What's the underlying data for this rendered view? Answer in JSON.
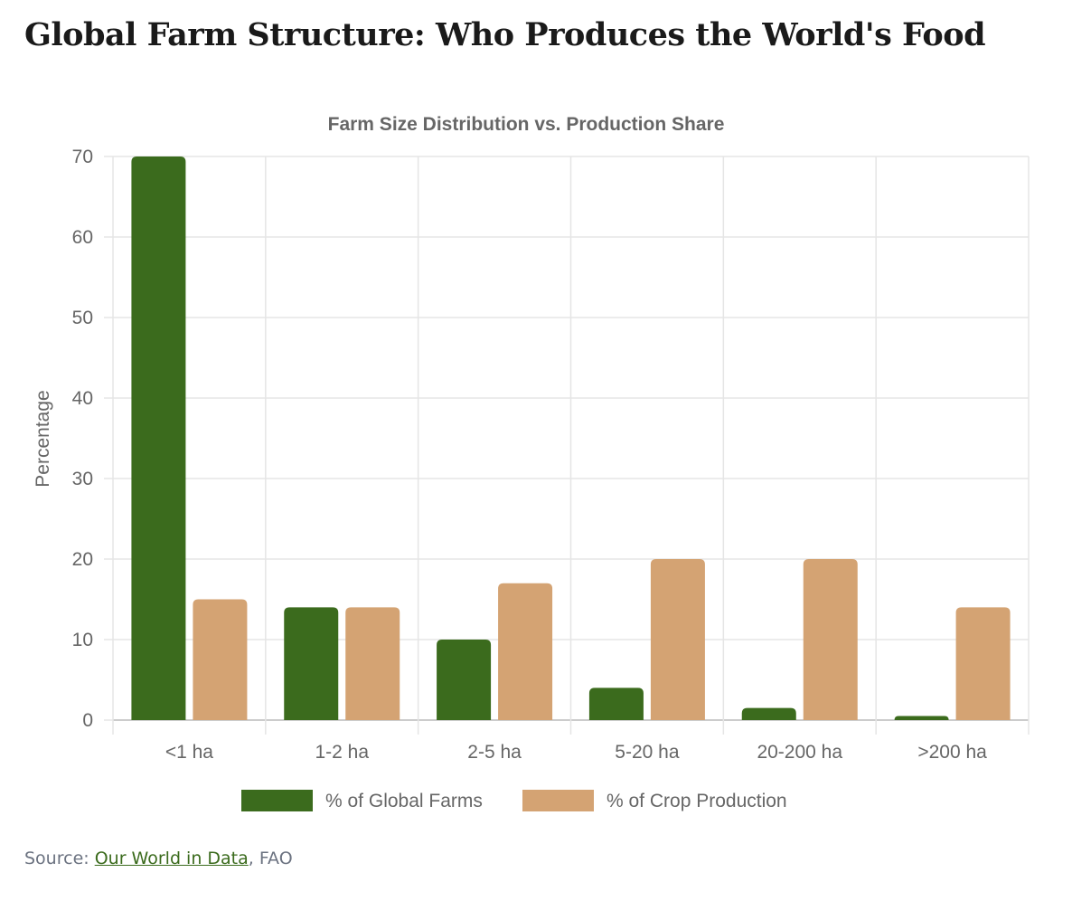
{
  "page_title": "Global Farm Structure: Who Produces the World's Food",
  "source": {
    "prefix": "Source: ",
    "link": "Our World in Data",
    "suffix": ", FAO"
  },
  "chart_data": {
    "type": "bar",
    "title": "Farm Size Distribution vs. Production Share",
    "ylabel": "Percentage",
    "xlabel": "",
    "ylim": [
      0,
      70
    ],
    "yticks": [
      0,
      10,
      20,
      30,
      40,
      50,
      60,
      70
    ],
    "grid": true,
    "legend": "bottom",
    "categories": [
      "<1 ha",
      "1-2 ha",
      "2-5 ha",
      "5-20 ha",
      "20-200 ha",
      ">200 ha"
    ],
    "series": [
      {
        "name": "% of Global Farms",
        "color": "#3b6b1d",
        "values": [
          70,
          14,
          10,
          4,
          1.5,
          0.5
        ]
      },
      {
        "name": "% of Crop Production",
        "color": "#d4a373",
        "values": [
          15,
          14,
          17,
          20,
          20,
          14
        ]
      }
    ]
  }
}
